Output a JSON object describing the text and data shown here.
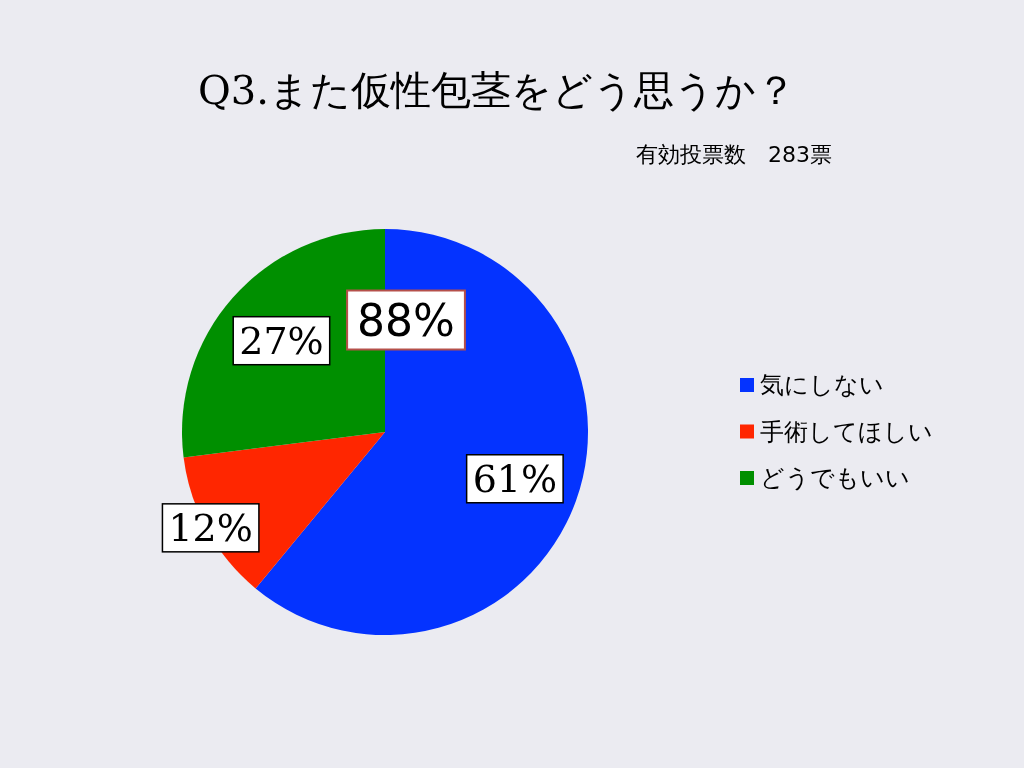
{
  "chart_data": {
    "type": "pie",
    "title": "Q3.また仮性包茎をどう思うか？",
    "subtitle": "有効投票数　283票",
    "categories": [
      "気にしない",
      "手術してほしい",
      "どうでもいい"
    ],
    "values": [
      61,
      12,
      27
    ],
    "colors": [
      "#0433ff",
      "#ff2600",
      "#008f00"
    ],
    "value_labels": [
      "61%",
      "12%",
      "27%"
    ],
    "annotations": [
      "88%"
    ],
    "legend": "right"
  }
}
